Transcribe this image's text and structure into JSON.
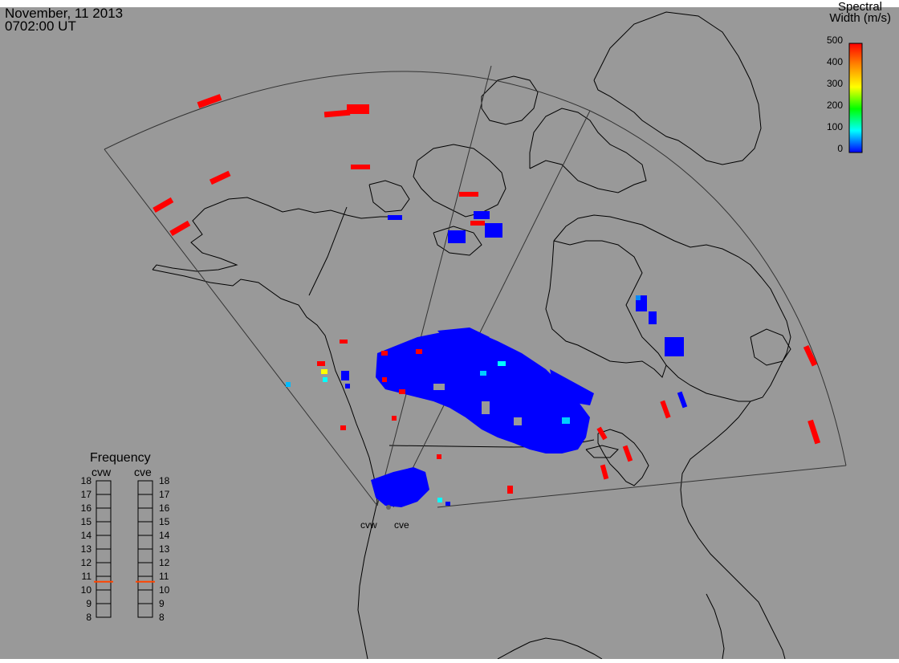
{
  "header": {
    "date": "November, 11 2013",
    "time": "0702:00 UT"
  },
  "colors": {
    "background": "#999999",
    "coast": "#000000",
    "fov": "#333333",
    "accent_frequency": "#ff4400"
  },
  "colorbar": {
    "title_line1": "Spectral",
    "title_line2": "Width (m/s)",
    "ticks": [
      "500",
      "400",
      "300",
      "200",
      "100",
      "0"
    ],
    "stops": [
      "#ff0000",
      "#ffaa00",
      "#ffff00",
      "#00ff00",
      "#00ffff",
      "#0000ff"
    ]
  },
  "frequency_panel": {
    "title": "Frequency",
    "radars": [
      {
        "code": "cvw",
        "freq_mhz": 10.6
      },
      {
        "code": "cve",
        "freq_mhz": 10.6
      }
    ],
    "ticks": [
      "18",
      "17",
      "16",
      "15",
      "14",
      "13",
      "12",
      "11",
      "10",
      "9",
      "8"
    ]
  },
  "radar_sites": [
    {
      "code": "cvw"
    },
    {
      "code": "cve"
    }
  ]
}
